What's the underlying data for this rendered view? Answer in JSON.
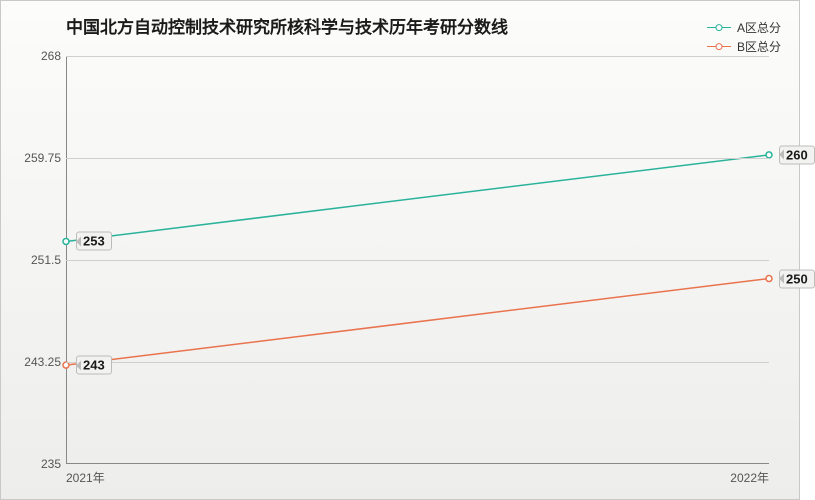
{
  "chart": {
    "type": "line",
    "title": "中国北方自动控制技术研究所核科学与技术历年考研分数线",
    "title_fontsize": 17,
    "background_gradient": [
      "#fcfcfa",
      "#ededeb"
    ],
    "border_color": "#c9c9c9",
    "grid_color": "#cfcfcd",
    "x": {
      "categories": [
        "2021年",
        "2022年"
      ]
    },
    "y": {
      "min": 235,
      "max": 268,
      "ticks": [
        235,
        243.25,
        251.5,
        259.75,
        268
      ]
    },
    "series": [
      {
        "name": "A区总分",
        "color": "#2ab39a",
        "values": [
          253,
          260
        ],
        "line_width": 1.5,
        "marker": {
          "style": "circle",
          "size": 5,
          "fill": "#ffffff"
        }
      },
      {
        "name": "B区总分",
        "color": "#e9734e",
        "values": [
          243,
          250
        ],
        "line_width": 1.5,
        "marker": {
          "style": "circle",
          "size": 5,
          "fill": "#ffffff"
        }
      }
    ],
    "label_font_color": "#555",
    "label_fontsize": 12,
    "value_label_fontsize": 13,
    "value_label_bg": "#f2f2f0",
    "value_label_border": "#bcbcbc"
  }
}
